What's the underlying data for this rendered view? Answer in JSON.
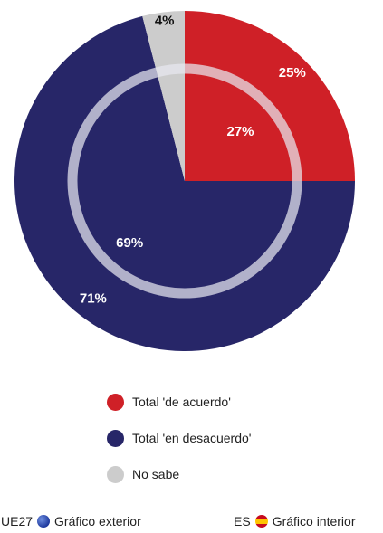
{
  "chart_data": {
    "type": "pie",
    "title": "",
    "rings": [
      {
        "ring": "outer",
        "label": "Gráfico exterior",
        "region": "UE27",
        "values": [
          25,
          71,
          4
        ]
      },
      {
        "ring": "inner",
        "label": "Gráfico interior",
        "region": "ES",
        "values": [
          27,
          69,
          4
        ]
      }
    ],
    "categories": [
      "Total 'de acuerdo'",
      "Total 'en desacuerdo'",
      "No sabe"
    ],
    "colors": [
      "#cf2027",
      "#272668",
      "#cccccc"
    ],
    "data_labels": {
      "outer": [
        "25%",
        "71%",
        "4%"
      ],
      "inner": [
        "27%",
        "69%",
        ""
      ]
    }
  },
  "legend": {
    "items": [
      {
        "label": "Total 'de acuerdo'",
        "color": "#cf2027"
      },
      {
        "label": "Total 'en desacuerdo'",
        "color": "#272668"
      },
      {
        "label": "No sabe",
        "color": "#cccccc"
      }
    ]
  },
  "footer": {
    "outer_region": "UE27",
    "outer_label": "Gráfico exterior",
    "outer_icon": "eu-flag-icon",
    "inner_region": "ES",
    "inner_label": "Gráfico interior",
    "inner_icon": "spain-flag-icon"
  }
}
